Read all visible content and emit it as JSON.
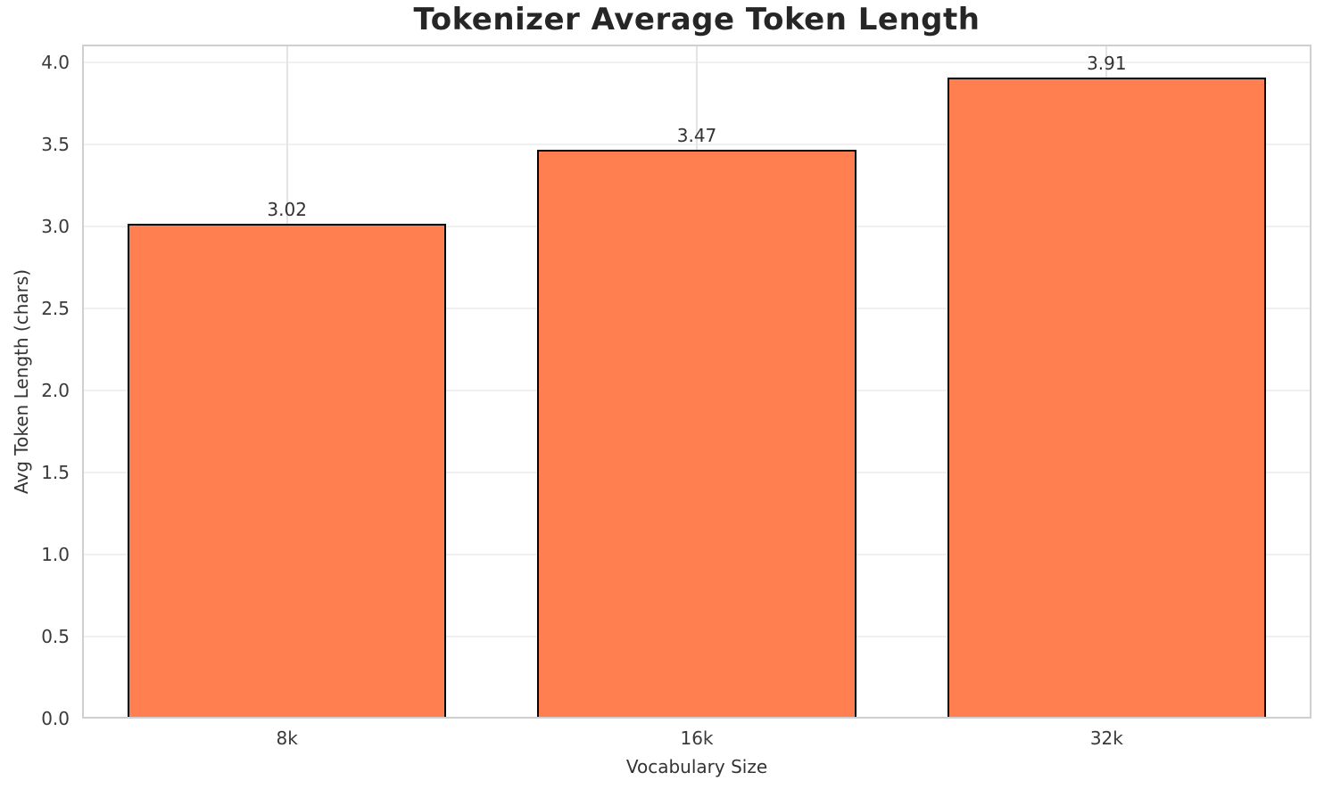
{
  "chart_data": {
    "type": "bar",
    "title": "Tokenizer Average Token Length",
    "xlabel": "Vocabulary Size",
    "ylabel": "Avg Token Length (chars)",
    "categories": [
      "8k",
      "16k",
      "32k"
    ],
    "values": [
      3.02,
      3.47,
      3.91
    ],
    "bar_labels": [
      "3.02",
      "3.47",
      "3.91"
    ],
    "ylim": [
      0,
      4.11
    ],
    "yticks": [
      0,
      0.5,
      1,
      1.5,
      2,
      2.5,
      3,
      3.5,
      4
    ],
    "ytick_labels": [
      "0.0",
      "0.5",
      "1.0",
      "1.5",
      "2.0",
      "2.5",
      "3.0",
      "3.5",
      "4.0"
    ],
    "grid": true,
    "legend_position": "none",
    "bar_width_fraction": 0.778,
    "colors": {
      "bar_fill": "#FF7F50",
      "bar_edge": "#000000",
      "grid_horizontal": "#F0F0F0",
      "grid_vertical": "#E4E4E4",
      "spine": "#CFCFCF",
      "title_text": "#262626",
      "tick_text": "#3A3A3A",
      "background": "#FFFFFF"
    }
  }
}
